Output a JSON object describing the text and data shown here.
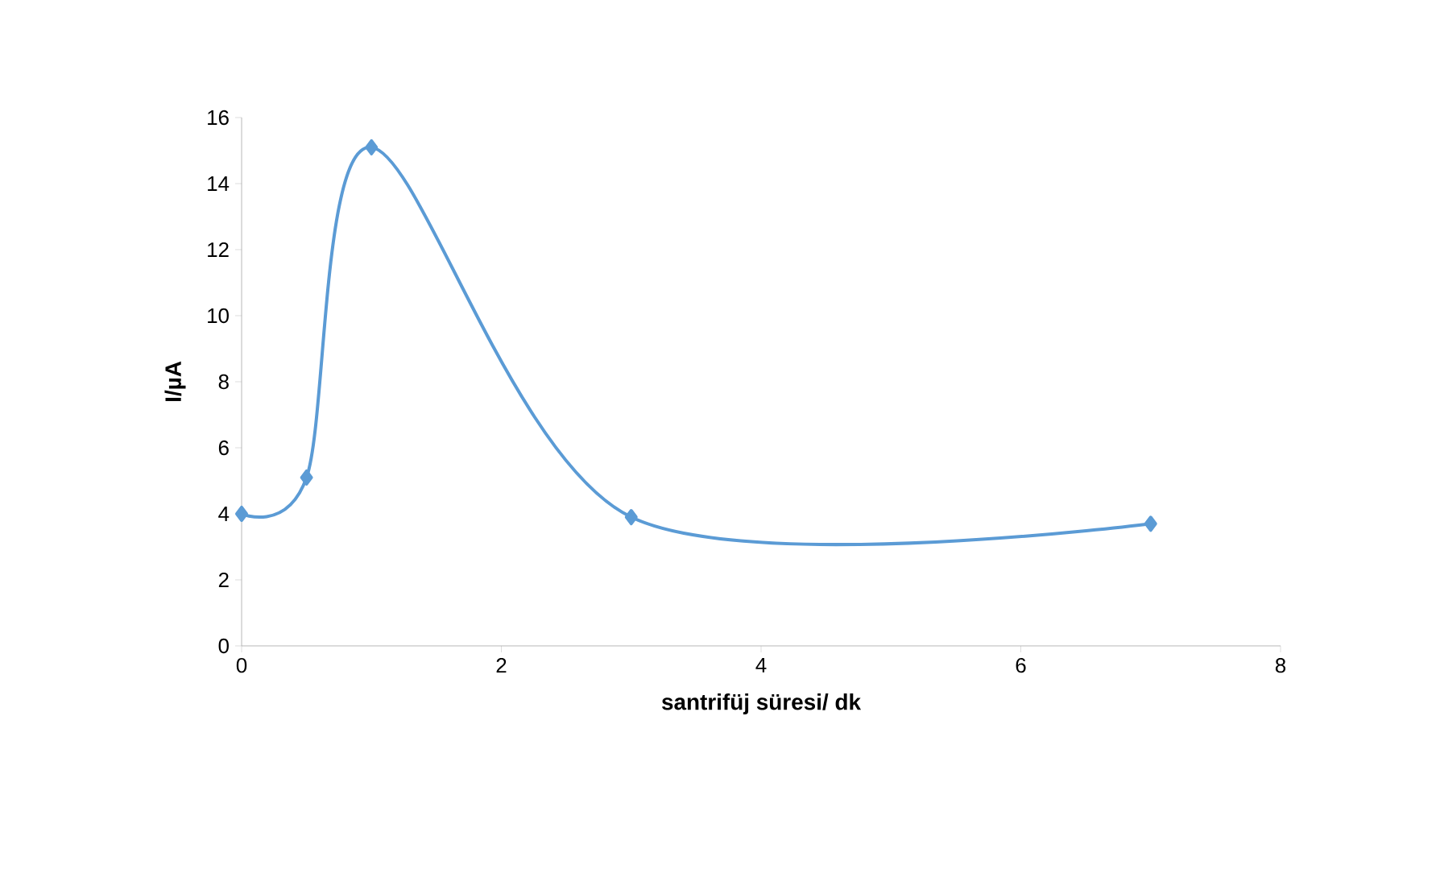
{
  "chart_data": {
    "type": "line",
    "xlabel": "santrifüj süresi/ dk",
    "ylabel": "I/µA",
    "x": [
      0,
      0.5,
      1,
      3,
      7
    ],
    "series": [
      {
        "color": "#5b9bd5",
        "values": [
          4,
          5.1,
          15.1,
          3.9,
          3.7
        ]
      }
    ],
    "xlim": [
      0,
      8
    ],
    "xticks": [
      0,
      2,
      4,
      6,
      8
    ],
    "ylim": [
      0,
      16
    ],
    "yticks": [
      0,
      2,
      4,
      6,
      8,
      10,
      12,
      14,
      16
    ],
    "marker": "diamond",
    "line_style": "solid"
  }
}
